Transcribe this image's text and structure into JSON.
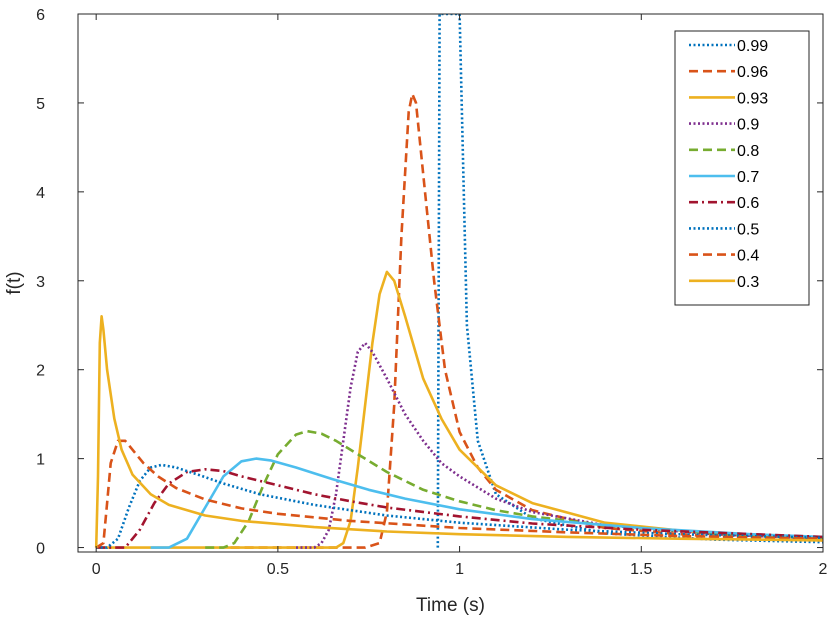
{
  "chart_data": {
    "type": "line",
    "title": "",
    "xlabel": "Time (s)",
    "ylabel": "f(t)",
    "xlim": [
      -0.05,
      2
    ],
    "ylim": [
      -0.05,
      6
    ],
    "xticks": [
      0,
      0.5,
      1,
      1.5,
      2
    ],
    "xtick_labels": [
      "0",
      "0.5",
      "1",
      "1.5",
      "2"
    ],
    "yticks": [
      0,
      1,
      2,
      3,
      4,
      5,
      6
    ],
    "ytick_labels": [
      "0",
      "1",
      "2",
      "3",
      "4",
      "5",
      "6"
    ],
    "grid": false,
    "legend_position": "top-right",
    "series": [
      {
        "name": "0.99",
        "color": "#0072BD",
        "dash": "dotted",
        "x": [
          0.94,
          0.945,
          0.96,
          0.98,
          1.0,
          1.02,
          1.05,
          1.1,
          1.2,
          1.4,
          1.7,
          2.0
        ],
        "y": [
          0.0,
          6.0,
          6.0,
          6.0,
          6.0,
          2.5,
          1.2,
          0.6,
          0.33,
          0.16,
          0.09,
          0.06
        ]
      },
      {
        "name": "0.96",
        "color": "#D95319",
        "dash": "dashed",
        "x": [
          0.37,
          0.74,
          0.78,
          0.8,
          0.82,
          0.84,
          0.86,
          0.87,
          0.88,
          0.9,
          0.93,
          0.96,
          1.0,
          1.05,
          1.1,
          1.2,
          1.4,
          1.7,
          2.0
        ],
        "y": [
          0.0,
          0.0,
          0.05,
          0.4,
          1.6,
          3.5,
          4.9,
          5.1,
          5.0,
          4.2,
          3.0,
          2.0,
          1.3,
          0.9,
          0.65,
          0.42,
          0.22,
          0.12,
          0.08
        ]
      },
      {
        "name": "0.93",
        "color": "#EDB120",
        "dash": "solid",
        "x": [
          0.0,
          0.66,
          0.68,
          0.7,
          0.72,
          0.74,
          0.76,
          0.78,
          0.8,
          0.82,
          0.85,
          0.9,
          0.95,
          1.0,
          1.1,
          1.2,
          1.4,
          1.7,
          2.0
        ],
        "y": [
          0.0,
          0.0,
          0.05,
          0.3,
          0.9,
          1.6,
          2.3,
          2.85,
          3.1,
          3.0,
          2.6,
          1.9,
          1.45,
          1.1,
          0.7,
          0.5,
          0.28,
          0.15,
          0.1
        ]
      },
      {
        "name": "0.9",
        "color": "#7E2F8E",
        "dash": "dotted",
        "x": [
          0.55,
          0.6,
          0.62,
          0.64,
          0.66,
          0.68,
          0.7,
          0.72,
          0.74,
          0.76,
          0.8,
          0.85,
          0.9,
          0.95,
          1.0,
          1.1,
          1.2,
          1.4,
          1.7,
          2.0
        ],
        "y": [
          0.0,
          0.0,
          0.05,
          0.2,
          0.6,
          1.2,
          1.8,
          2.2,
          2.3,
          2.2,
          1.9,
          1.5,
          1.2,
          0.95,
          0.8,
          0.55,
          0.4,
          0.25,
          0.15,
          0.1
        ]
      },
      {
        "name": "0.8",
        "color": "#77AC30",
        "dash": "dashed",
        "x": [
          0.3,
          0.35,
          0.38,
          0.42,
          0.46,
          0.5,
          0.55,
          0.58,
          0.62,
          0.66,
          0.72,
          0.8,
          0.9,
          1.0,
          1.1,
          1.2,
          1.4,
          1.7,
          2.0
        ],
        "y": [
          0.0,
          0.0,
          0.05,
          0.3,
          0.7,
          1.05,
          1.27,
          1.31,
          1.28,
          1.2,
          1.05,
          0.85,
          0.65,
          0.52,
          0.42,
          0.35,
          0.25,
          0.16,
          0.11
        ]
      },
      {
        "name": "0.7",
        "color": "#4DBEEE",
        "dash": "solid",
        "x": [
          0.15,
          0.2,
          0.25,
          0.3,
          0.35,
          0.4,
          0.44,
          0.48,
          0.55,
          0.65,
          0.75,
          0.85,
          1.0,
          1.2,
          1.5,
          1.8,
          2.0
        ],
        "y": [
          0.0,
          0.0,
          0.1,
          0.45,
          0.8,
          0.97,
          1.0,
          0.98,
          0.9,
          0.77,
          0.65,
          0.55,
          0.43,
          0.32,
          0.22,
          0.15,
          0.12
        ]
      },
      {
        "name": "0.6",
        "color": "#A2142F",
        "dash": "dashdot",
        "x": [
          0.0,
          0.08,
          0.12,
          0.16,
          0.2,
          0.25,
          0.3,
          0.35,
          0.4,
          0.5,
          0.6,
          0.7,
          0.8,
          1.0,
          1.2,
          1.5,
          2.0
        ],
        "y": [
          0.0,
          0.0,
          0.2,
          0.5,
          0.72,
          0.85,
          0.88,
          0.86,
          0.8,
          0.7,
          0.6,
          0.52,
          0.45,
          0.35,
          0.27,
          0.2,
          0.12
        ]
      },
      {
        "name": "0.5",
        "color": "#0072BD",
        "dash": "dotted",
        "x": [
          0.0,
          0.03,
          0.06,
          0.09,
          0.12,
          0.15,
          0.18,
          0.22,
          0.28,
          0.35,
          0.45,
          0.6,
          0.8,
          1.0,
          1.3,
          1.6,
          2.0
        ],
        "y": [
          0.0,
          0.0,
          0.1,
          0.45,
          0.75,
          0.9,
          0.93,
          0.9,
          0.82,
          0.72,
          0.6,
          0.48,
          0.36,
          0.28,
          0.2,
          0.15,
          0.11
        ]
      },
      {
        "name": "0.4",
        "color": "#D95319",
        "dash": "dashed",
        "x": [
          0.0,
          0.02,
          0.03,
          0.04,
          0.06,
          0.08,
          0.1,
          0.13,
          0.17,
          0.22,
          0.3,
          0.4,
          0.5,
          0.7,
          1.0,
          1.3,
          1.6,
          2.0
        ],
        "y": [
          0.0,
          0.05,
          0.5,
          0.95,
          1.2,
          1.2,
          1.1,
          0.95,
          0.8,
          0.67,
          0.54,
          0.44,
          0.38,
          0.3,
          0.22,
          0.17,
          0.13,
          0.1
        ]
      },
      {
        "name": "0.3",
        "color": "#EDB120",
        "dash": "solid",
        "x": [
          0.0,
          0.005,
          0.01,
          0.015,
          0.02,
          0.03,
          0.05,
          0.07,
          0.1,
          0.15,
          0.2,
          0.3,
          0.4,
          0.6,
          0.8,
          1.0,
          1.3,
          1.6,
          2.0
        ],
        "y": [
          0.0,
          0.8,
          2.3,
          2.6,
          2.45,
          2.0,
          1.45,
          1.1,
          0.82,
          0.6,
          0.48,
          0.36,
          0.3,
          0.23,
          0.18,
          0.15,
          0.12,
          0.1,
          0.08
        ]
      }
    ]
  }
}
